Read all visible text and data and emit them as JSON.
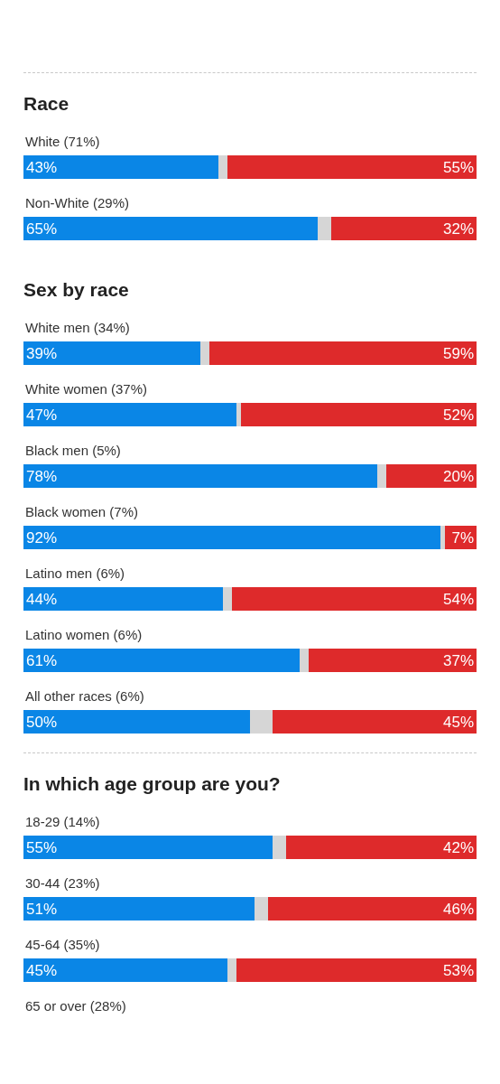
{
  "chart_data": [
    {
      "type": "bar",
      "orientation": "horizontal",
      "stacked": true,
      "title": "Race",
      "categories": [
        "White (71%)",
        "Non-White (29%)"
      ],
      "series": [
        {
          "color": "#0a86e6",
          "values": [
            43,
            65
          ],
          "value_labels": [
            "43%",
            "65%"
          ]
        },
        {
          "color": "#d6d6d6",
          "values": [
            2,
            3
          ]
        },
        {
          "color": "#de2a2b",
          "values": [
            55,
            32
          ],
          "value_labels": [
            "55%",
            "32%"
          ]
        }
      ],
      "xlim": [
        0,
        100
      ],
      "tick_labels": "y"
    },
    {
      "type": "bar",
      "orientation": "horizontal",
      "stacked": true,
      "title": "Sex by race",
      "categories": [
        "White men (34%)",
        "White women (37%)",
        "Black men (5%)",
        "Black women (7%)",
        "Latino men (6%)",
        "Latino women (6%)",
        "All other races (6%)"
      ],
      "series": [
        {
          "color": "#0a86e6",
          "values": [
            39,
            47,
            78,
            92,
            44,
            61,
            50
          ],
          "value_labels": [
            "39%",
            "47%",
            "78%",
            "92%",
            "44%",
            "61%",
            "50%"
          ]
        },
        {
          "color": "#d6d6d6",
          "values": [
            2,
            1,
            2,
            1,
            2,
            2,
            5
          ]
        },
        {
          "color": "#de2a2b",
          "values": [
            59,
            52,
            20,
            7,
            54,
            37,
            45
          ],
          "value_labels": [
            "59%",
            "52%",
            "20%",
            "7%",
            "54%",
            "37%",
            "45%"
          ]
        }
      ],
      "xlim": [
        0,
        100
      ],
      "tick_labels": "y"
    },
    {
      "type": "bar",
      "orientation": "horizontal",
      "stacked": true,
      "title": "In which age group are you?",
      "categories": [
        "18-29 (14%)",
        "30-44 (23%)",
        "45-64 (35%)",
        "65 or over (28%)"
      ],
      "series": [
        {
          "color": "#0a86e6",
          "values": [
            55,
            51,
            45,
            null
          ],
          "value_labels": [
            "55%",
            "51%",
            "45%",
            null
          ]
        },
        {
          "color": "#d6d6d6",
          "values": [
            3,
            3,
            2,
            null
          ]
        },
        {
          "color": "#de2a2b",
          "values": [
            42,
            46,
            53,
            null
          ],
          "value_labels": [
            "42%",
            "46%",
            "53%",
            null
          ]
        }
      ],
      "xlim": [
        0,
        100
      ],
      "tick_labels": "y"
    }
  ]
}
